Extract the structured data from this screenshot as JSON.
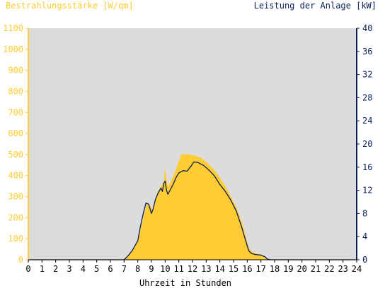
{
  "chart_data": {
    "type": "area",
    "title": "",
    "ylabel_left": "Bestrahlungsstärke [W/qm]",
    "ylabel_right": "Leistung der Anlage [kW]",
    "xlabel": "Uhrzeit in Stunden",
    "xlim": [
      0,
      24
    ],
    "ylim_left": [
      0,
      1100
    ],
    "ylim_right": [
      0,
      40
    ],
    "x_ticks": [
      "0",
      "1",
      "2",
      "3",
      "4",
      "5",
      "6",
      "7",
      "8",
      "9",
      "10",
      "11",
      "12",
      "13",
      "14",
      "15",
      "16",
      "17",
      "18",
      "19",
      "20",
      "21",
      "22",
      "23",
      "24"
    ],
    "y_ticks_left": [
      "0",
      "100",
      "200",
      "300",
      "400",
      "500",
      "600",
      "700",
      "800",
      "900",
      "1000",
      "1100"
    ],
    "y_ticks_right": [
      "0",
      "4",
      "8",
      "12",
      "16",
      "20",
      "24",
      "28",
      "32",
      "36",
      "40"
    ],
    "grid": false,
    "series": [
      {
        "axis": "left",
        "render": "area",
        "color": "#FFCC33",
        "x": [
          0,
          6.9,
          7.0,
          7.3,
          7.6,
          8.0,
          8.3,
          8.5,
          8.7,
          8.9,
          9.1,
          9.3,
          9.5,
          9.7,
          9.9,
          10.0,
          10.1,
          10.2,
          10.4,
          10.6,
          10.8,
          11.0,
          11.2,
          11.4,
          11.8,
          12.2,
          12.6,
          13.0,
          13.4,
          13.8,
          14.0,
          14.4,
          14.8,
          15.2,
          15.6,
          15.9,
          16.1,
          16.3,
          16.6,
          17.0,
          17.4,
          17.6,
          17.8,
          24
        ],
        "values": [
          0,
          0,
          0,
          20,
          45,
          90,
          170,
          230,
          270,
          260,
          230,
          290,
          330,
          350,
          370,
          440,
          380,
          350,
          370,
          400,
          430,
          470,
          500,
          502,
          500,
          495,
          485,
          465,
          440,
          410,
          390,
          350,
          300,
          250,
          180,
          110,
          60,
          40,
          30,
          25,
          10,
          2,
          0,
          0
        ]
      },
      {
        "axis": "right",
        "render": "line",
        "color": "#0A1E5A",
        "x": [
          0,
          6.9,
          7.0,
          7.3,
          7.6,
          8.0,
          8.2,
          8.4,
          8.6,
          8.8,
          9.0,
          9.1,
          9.3,
          9.5,
          9.7,
          9.8,
          9.9,
          10.0,
          10.1,
          10.2,
          10.4,
          10.6,
          10.8,
          11.0,
          11.3,
          11.6,
          11.9,
          12.1,
          12.4,
          12.8,
          13.2,
          13.6,
          14.0,
          14.4,
          14.8,
          15.2,
          15.6,
          15.9,
          16.1,
          16.3,
          16.6,
          17.0,
          17.3,
          17.5,
          17.7,
          24
        ],
        "values": [
          0,
          0,
          0,
          0.7,
          1.6,
          3.3,
          5.8,
          8.0,
          9.8,
          9.6,
          8.0,
          8.6,
          10.5,
          11.6,
          12.4,
          11.8,
          13.2,
          13.6,
          12.0,
          11.3,
          12.2,
          13.1,
          14.2,
          15.0,
          15.4,
          15.3,
          16.2,
          16.9,
          16.8,
          16.3,
          15.5,
          14.5,
          13.0,
          11.8,
          10.3,
          8.4,
          5.6,
          3.2,
          1.6,
          1.1,
          0.9,
          0.8,
          0.5,
          0.1,
          0,
          0
        ]
      }
    ]
  },
  "colors": {
    "plot_background": "#DCDCDC",
    "left_axis": "#FFCC33",
    "right_axis": "#0A1E5A",
    "x_axis": "#000000"
  }
}
